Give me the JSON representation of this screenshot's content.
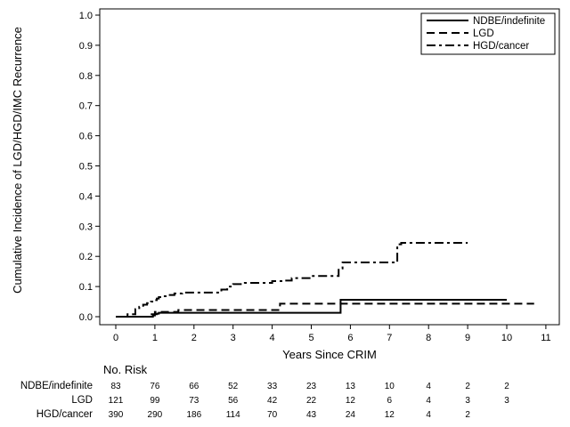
{
  "chart_data": {
    "type": "line",
    "step": true,
    "xlabel": "Years Since CRIM",
    "ylabel": "Cumulative Incidence of LGD/HGD/IMC Recurrence",
    "xlim": [
      0,
      11
    ],
    "ylim": [
      0,
      1
    ],
    "xticks": [
      "0",
      "1",
      "2",
      "3",
      "4",
      "5",
      "6",
      "7",
      "8",
      "9",
      "10",
      "11"
    ],
    "yticks": [
      "0.0",
      "0.1",
      "0.2",
      "0.3",
      "0.4",
      "0.5",
      "0.6",
      "0.7",
      "0.8",
      "0.9",
      "1.0"
    ],
    "grid": false,
    "legend_position": "top-right",
    "series": [
      {
        "name": "NDBE/indefinite",
        "style": "solid",
        "x": [
          0,
          0.95,
          1.0,
          1.05,
          1.1,
          5.72,
          5.75,
          10.0
        ],
        "y": [
          0,
          0.004,
          0.008,
          0.01,
          0.013,
          0.013,
          0.056,
          0.056
        ]
      },
      {
        "name": "LGD",
        "style": "dashed",
        "x": [
          0,
          0.85,
          1.0,
          1.6,
          4.2,
          10.7
        ],
        "y": [
          0,
          0.008,
          0.016,
          0.022,
          0.043,
          0.043
        ]
      },
      {
        "name": "HGD/cancer",
        "style": "dashdot",
        "x": [
          0,
          0.3,
          0.5,
          0.6,
          0.7,
          0.8,
          0.9,
          1.0,
          1.05,
          1.1,
          1.2,
          1.3,
          1.5,
          1.7,
          2.7,
          2.85,
          3.0,
          3.3,
          3.5,
          4.0,
          4.3,
          4.5,
          5.0,
          5.7,
          5.8,
          6.8,
          7.2,
          7.3,
          9.0
        ],
        "y": [
          0,
          0.008,
          0.025,
          0.033,
          0.04,
          0.045,
          0.05,
          0.055,
          0.06,
          0.065,
          0.068,
          0.072,
          0.077,
          0.08,
          0.09,
          0.1,
          0.108,
          0.112,
          0.112,
          0.118,
          0.12,
          0.128,
          0.135,
          0.16,
          0.18,
          0.18,
          0.24,
          0.245,
          0.245
        ]
      }
    ]
  },
  "risk_table": {
    "title": "No. Risk",
    "rows": [
      {
        "label": "NDBE/indefinite",
        "values": [
          "83",
          "76",
          "66",
          "52",
          "33",
          "23",
          "13",
          "10",
          "4",
          "2",
          "2"
        ]
      },
      {
        "label": "LGD",
        "values": [
          "121",
          "99",
          "73",
          "56",
          "42",
          "22",
          "12",
          "6",
          "4",
          "3",
          "3"
        ]
      },
      {
        "label": "HGD/cancer",
        "values": [
          "390",
          "290",
          "186",
          "114",
          "70",
          "43",
          "24",
          "12",
          "4",
          "2",
          ""
        ]
      }
    ]
  }
}
